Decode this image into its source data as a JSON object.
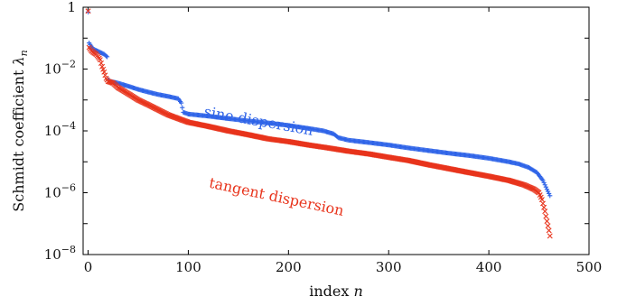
{
  "chart_data": {
    "type": "scatter",
    "title": "",
    "xlabel_text": "index ",
    "xlabel_var": "n",
    "ylabel_text": "Schmidt coefficient ",
    "ylabel_var": "λ",
    "ylabel_sub": "n",
    "xlim": [
      -5,
      500
    ],
    "ylim": [
      1e-08,
      1
    ],
    "yscale": "log",
    "x_ticks": [
      0,
      100,
      200,
      300,
      400,
      500
    ],
    "x_tick_labels": [
      "0",
      "100",
      "200",
      "300",
      "400",
      "500"
    ],
    "y_ticks": [
      {
        "value": 1,
        "base": "1",
        "exp": ""
      },
      {
        "value": 0.01,
        "base": "10",
        "exp": "−2"
      },
      {
        "value": 0.0001,
        "base": "10",
        "exp": "−4"
      },
      {
        "value": 1e-06,
        "base": "10",
        "exp": "−6"
      },
      {
        "value": 1e-08,
        "base": "10",
        "exp": "−8"
      }
    ],
    "grid": false,
    "legend": "none",
    "series": [
      {
        "name": "sine dispersion",
        "color": "#2f64e8",
        "marker": "plus",
        "points": [
          [
            0,
            0.7
          ],
          [
            1,
            0.07
          ],
          [
            3,
            0.055
          ],
          [
            5,
            0.045
          ],
          [
            8,
            0.04
          ],
          [
            12,
            0.035
          ],
          [
            16,
            0.03
          ],
          [
            19,
            0.025
          ],
          [
            20,
            0.0045
          ],
          [
            22,
            0.004
          ],
          [
            30,
            0.0035
          ],
          [
            40,
            0.0028
          ],
          [
            50,
            0.0022
          ],
          [
            60,
            0.0018
          ],
          [
            70,
            0.0015
          ],
          [
            80,
            0.0013
          ],
          [
            85,
            0.0012
          ],
          [
            90,
            0.0011
          ],
          [
            93,
            0.0008
          ],
          [
            95,
            0.0004
          ],
          [
            100,
            0.00035
          ],
          [
            120,
            0.0003
          ],
          [
            140,
            0.00025
          ],
          [
            160,
            0.00021
          ],
          [
            180,
            0.00018
          ],
          [
            200,
            0.00015
          ],
          [
            220,
            0.00012
          ],
          [
            235,
            0.0001
          ],
          [
            245,
            8e-05
          ],
          [
            250,
            6e-05
          ],
          [
            260,
            5e-05
          ],
          [
            280,
            4.2e-05
          ],
          [
            300,
            3.5e-05
          ],
          [
            320,
            2.8e-05
          ],
          [
            340,
            2.3e-05
          ],
          [
            360,
            1.9e-05
          ],
          [
            380,
            1.6e-05
          ],
          [
            400,
            1.3e-05
          ],
          [
            420,
            1e-05
          ],
          [
            430,
            8.5e-06
          ],
          [
            440,
            6.5e-06
          ],
          [
            448,
            4.5e-06
          ],
          [
            454,
            2.5e-06
          ],
          [
            459,
            1.1e-06
          ],
          [
            461,
            8e-07
          ]
        ],
        "label_pos_data": [
          115,
          0.0003
        ]
      },
      {
        "name": "tangent dispersion",
        "color": "#e8341c",
        "marker": "x",
        "points": [
          [
            0,
            0.75
          ],
          [
            1,
            0.05
          ],
          [
            3,
            0.04
          ],
          [
            5,
            0.035
          ],
          [
            8,
            0.03
          ],
          [
            10,
            0.025
          ],
          [
            12,
            0.02
          ],
          [
            14,
            0.012
          ],
          [
            16,
            0.008
          ],
          [
            18,
            0.005
          ],
          [
            20,
            0.004
          ],
          [
            25,
            0.0035
          ],
          [
            30,
            0.0025
          ],
          [
            40,
            0.0016
          ],
          [
            50,
            0.001
          ],
          [
            60,
            0.0007
          ],
          [
            70,
            0.00048
          ],
          [
            80,
            0.00033
          ],
          [
            90,
            0.00025
          ],
          [
            100,
            0.00019
          ],
          [
            120,
            0.00014
          ],
          [
            140,
            0.0001
          ],
          [
            160,
            7.5e-05
          ],
          [
            180,
            5.5e-05
          ],
          [
            200,
            4.5e-05
          ],
          [
            220,
            3.5e-05
          ],
          [
            240,
            2.8e-05
          ],
          [
            260,
            2.2e-05
          ],
          [
            280,
            1.8e-05
          ],
          [
            300,
            1.4e-05
          ],
          [
            320,
            1.1e-05
          ],
          [
            340,
            8e-06
          ],
          [
            360,
            6e-06
          ],
          [
            380,
            4.5e-06
          ],
          [
            400,
            3.4e-06
          ],
          [
            420,
            2.5e-06
          ],
          [
            435,
            1.8e-06
          ],
          [
            445,
            1.3e-06
          ],
          [
            450,
            1e-06
          ],
          [
            453,
            6e-07
          ],
          [
            456,
            2.5e-07
          ],
          [
            458,
            1.2e-07
          ],
          [
            460,
            6e-08
          ],
          [
            461,
            4e-08
          ]
        ],
        "label_pos_data": [
          120,
          1.5e-06
        ]
      }
    ]
  }
}
